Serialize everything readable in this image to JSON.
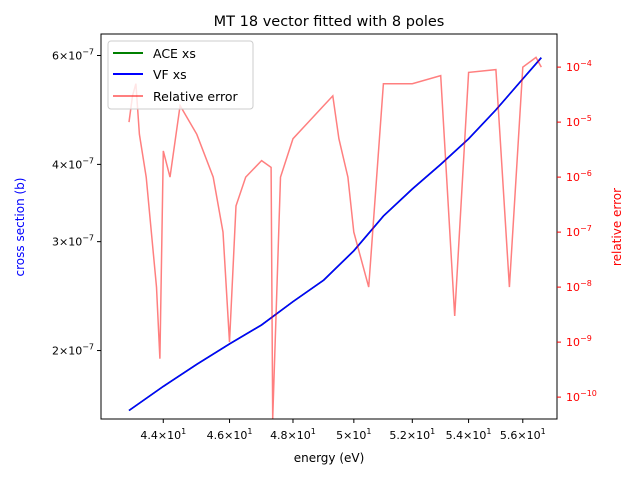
{
  "chart_data": {
    "type": "line",
    "title": "MT 18 vector fitted with 8 poles",
    "xlabel": "energy (eV)",
    "ylabel_left": "cross section (b)",
    "ylabel_right": "relative error",
    "x_scale": "log",
    "xlim": [
      42.2,
      57.3
    ],
    "left_axis": {
      "scale": "log",
      "ylim": [
        1.55e-07,
        6.5e-07
      ]
    },
    "right_axis": {
      "scale": "log",
      "ylim": [
        4e-11,
        0.0004
      ]
    },
    "x_ticks": [
      {
        "value": 44,
        "mant": "4.4",
        "exp": "1"
      },
      {
        "value": 46,
        "mant": "4.6",
        "exp": "1"
      },
      {
        "value": 48,
        "mant": "4.8",
        "exp": "1"
      },
      {
        "value": 50,
        "mant": "5",
        "exp": "1"
      },
      {
        "value": 52,
        "mant": "5.2",
        "exp": "1"
      },
      {
        "value": 54,
        "mant": "5.4",
        "exp": "1"
      },
      {
        "value": 56,
        "mant": "5.6",
        "exp": "1"
      }
    ],
    "left_ticks": [
      {
        "value": 2e-07,
        "mant": "2",
        "exp": "−7"
      },
      {
        "value": 3e-07,
        "mant": "3",
        "exp": "−7"
      },
      {
        "value": 4e-07,
        "mant": "4",
        "exp": "−7"
      },
      {
        "value": 6e-07,
        "mant": "6",
        "exp": "−7"
      }
    ],
    "right_ticks": [
      {
        "value": 1e-10,
        "base": "10",
        "exp": "−10"
      },
      {
        "value": 1e-09,
        "base": "10",
        "exp": "−9"
      },
      {
        "value": 1e-08,
        "base": "10",
        "exp": "−8"
      },
      {
        "value": 1e-07,
        "base": "10",
        "exp": "−7"
      },
      {
        "value": 1e-06,
        "base": "10",
        "exp": "−6"
      },
      {
        "value": 1e-05,
        "base": "10",
        "exp": "−5"
      },
      {
        "value": 0.0001,
        "base": "10",
        "exp": "−4"
      }
    ],
    "series": [
      {
        "name": "ACE xs",
        "axis": "left",
        "color": "#008000",
        "x": [
          43.0,
          44.0,
          45.0,
          46.0,
          47.0,
          48.0,
          49.0,
          50.0,
          51.0,
          52.0,
          53.0,
          54.0,
          55.0,
          56.0,
          56.7
        ],
        "y": [
          1.6e-07,
          1.75e-07,
          1.9e-07,
          2.05e-07,
          2.2e-07,
          2.4e-07,
          2.6e-07,
          2.9e-07,
          3.3e-07,
          3.65e-07,
          4e-07,
          4.4e-07,
          4.9e-07,
          5.5e-07,
          5.95e-07
        ]
      },
      {
        "name": "VF xs",
        "axis": "left",
        "color": "#0000ff",
        "x": [
          43.0,
          44.0,
          45.0,
          46.0,
          47.0,
          48.0,
          49.0,
          50.0,
          51.0,
          52.0,
          53.0,
          54.0,
          55.0,
          56.0,
          56.7
        ],
        "y": [
          1.6e-07,
          1.75e-07,
          1.9e-07,
          2.05e-07,
          2.2e-07,
          2.4e-07,
          2.6e-07,
          2.9e-07,
          3.3e-07,
          3.65e-07,
          4e-07,
          4.4e-07,
          4.9e-07,
          5.5e-07,
          5.95e-07
        ]
      },
      {
        "name": "Relative error",
        "axis": "right",
        "color": "#ff0000",
        "alpha": 0.5,
        "x": [
          43.0,
          43.1,
          43.2,
          43.3,
          43.5,
          43.8,
          43.9,
          44.0,
          44.2,
          44.5,
          45.0,
          45.5,
          45.8,
          46.0,
          46.2,
          46.5,
          47.0,
          47.3,
          47.35,
          47.6,
          48.0,
          48.5,
          49.0,
          49.3,
          49.5,
          49.8,
          50.0,
          50.5,
          51.0,
          52.0,
          53.0,
          53.5,
          54.0,
          55.0,
          55.5,
          56.0,
          56.5,
          56.7
        ],
        "y": [
          1e-05,
          3e-05,
          5e-05,
          6e-06,
          1e-06,
          1e-08,
          5e-10,
          3e-06,
          1e-06,
          2e-05,
          6e-06,
          1e-06,
          1e-07,
          1e-09,
          3e-07,
          1e-06,
          2e-06,
          1.5e-06,
          4e-11,
          1e-06,
          5e-06,
          1e-05,
          2e-05,
          3e-05,
          5e-06,
          1e-06,
          1e-07,
          1e-08,
          5e-05,
          5e-05,
          7e-05,
          3e-09,
          8e-05,
          9e-05,
          1e-08,
          0.0001,
          0.00015,
          0.0001
        ]
      }
    ],
    "legend": "top-left"
  }
}
